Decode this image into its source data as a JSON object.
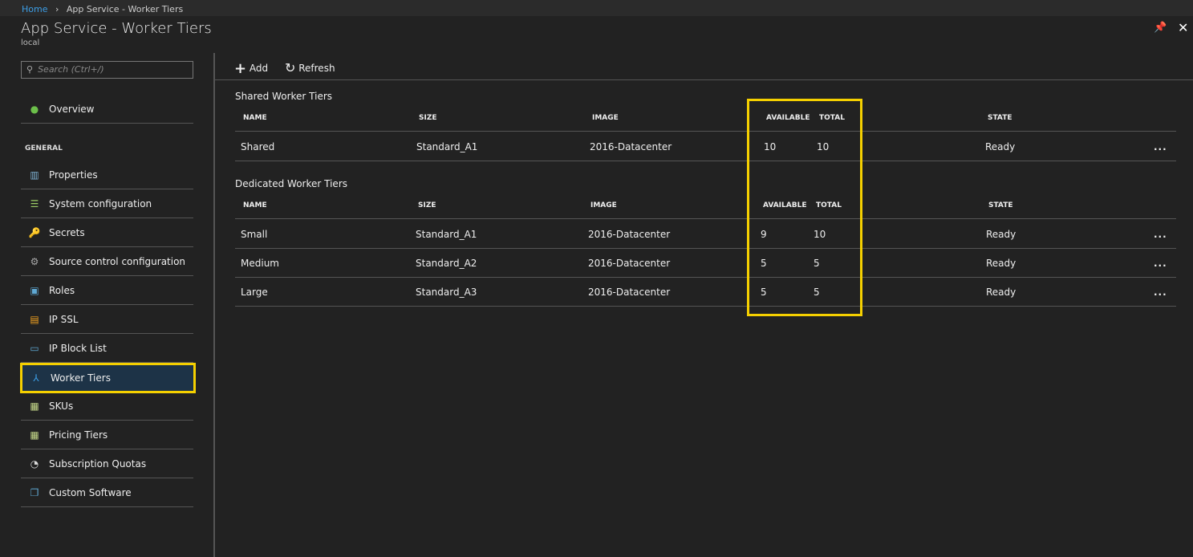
{
  "breadcrumb": {
    "home": "Home",
    "sep": "›",
    "current": "App Service - Worker Tiers"
  },
  "header": {
    "title": "App Service - Worker Tiers",
    "subtitle": "local",
    "pin": "📌",
    "close": "✕"
  },
  "search": {
    "placeholder": "Search (Ctrl+/)"
  },
  "sidebar": {
    "overview": "Overview",
    "general": "GENERAL",
    "items": [
      {
        "label": "Properties",
        "icon": "properties-icon",
        "glyph": "▥",
        "color": "#7fb3d5"
      },
      {
        "label": "System configuration",
        "icon": "system-config-icon",
        "glyph": "☰",
        "color": "#9ccc65"
      },
      {
        "label": "Secrets",
        "icon": "key-icon",
        "glyph": "🔑",
        "color": "#f5c400"
      },
      {
        "label": "Source control configuration",
        "icon": "gear-icon",
        "glyph": "⚙",
        "color": "#aaa"
      },
      {
        "label": "Roles",
        "icon": "roles-icon",
        "glyph": "▣",
        "color": "#5fa8d3"
      },
      {
        "label": "IP SSL",
        "icon": "certificate-icon",
        "glyph": "▤",
        "color": "#f0a020"
      },
      {
        "label": "IP Block List",
        "icon": "block-list-icon",
        "glyph": "▭",
        "color": "#5fa8d3"
      },
      {
        "label": "Worker Tiers",
        "icon": "worker-tiers-icon",
        "glyph": "⅄",
        "color": "#3c9ee6",
        "selected": true
      },
      {
        "label": "SKUs",
        "icon": "skus-icon",
        "glyph": "▦",
        "color": "#c5d88a"
      },
      {
        "label": "Pricing Tiers",
        "icon": "pricing-icon",
        "glyph": "▦",
        "color": "#c5d88a"
      },
      {
        "label": "Subscription Quotas",
        "icon": "quota-gauge-icon",
        "glyph": "◔",
        "color": "#ddd"
      },
      {
        "label": "Custom Software",
        "icon": "software-icon",
        "glyph": "❐",
        "color": "#5fa8d3"
      }
    ]
  },
  "toolbar": {
    "add": "Add",
    "refresh": "Refresh"
  },
  "columns": [
    "NAME",
    "SIZE",
    "IMAGE",
    "AVAILABLE",
    "TOTAL",
    "STATE"
  ],
  "shared": {
    "title": "Shared Worker Tiers",
    "rows": [
      [
        "Shared",
        "Standard_A1",
        "2016-Datacenter",
        "10",
        "10",
        "Ready"
      ]
    ]
  },
  "dedicated": {
    "title": "Dedicated Worker Tiers",
    "rows": [
      [
        "Small",
        "Standard_A1",
        "2016-Datacenter",
        "9",
        "10",
        "Ready"
      ],
      [
        "Medium",
        "Standard_A2",
        "2016-Datacenter",
        "5",
        "5",
        "Ready"
      ],
      [
        "Large",
        "Standard_A3",
        "2016-Datacenter",
        "5",
        "5",
        "Ready"
      ]
    ]
  },
  "more": "..."
}
